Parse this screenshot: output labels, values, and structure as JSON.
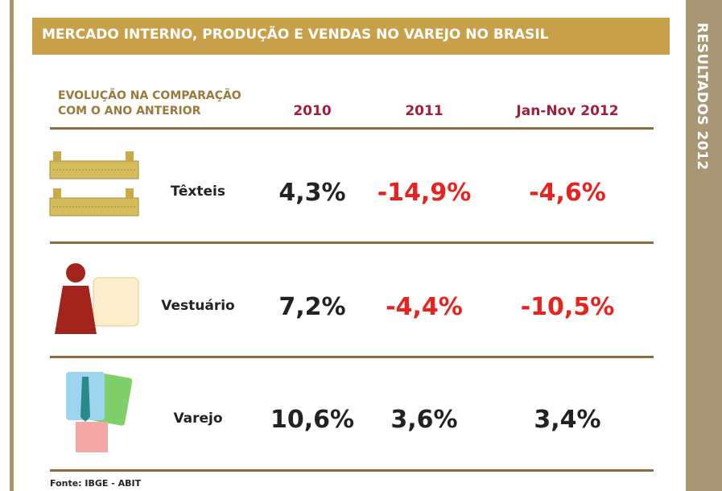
{
  "header": {
    "title": "MERCADO INTERNO, PRODUÇÃO E VENDAS NO VAREJO NO BRASIL"
  },
  "side_label": "RESULTADOS 2012",
  "table": {
    "header": {
      "label": [
        "EVOLUÇÃO NA COMPARAÇÃO",
        "COM O ANO ANTERIOR"
      ],
      "columns": [
        "2010",
        "2011",
        "Jan-Nov 2012"
      ]
    },
    "rows": [
      [
        "Têxteis",
        "4,3%",
        "-14,9%",
        "-4,6%"
      ],
      [
        "Vestuário",
        "7,2%",
        "-4,4%",
        "-10,5%"
      ],
      [
        "Varejo",
        "10,6%",
        "3,6%",
        "3,4%"
      ]
    ]
  },
  "footer": {
    "source": "Fonte: IBGE - ABIT"
  }
}
